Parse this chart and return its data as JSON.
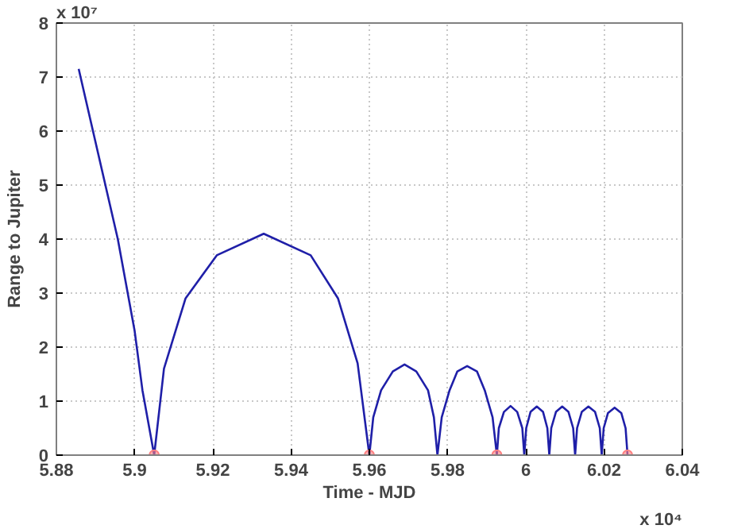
{
  "chart_data": {
    "type": "line",
    "xlabel": "Time - MJD",
    "ylabel": "Range to Jupiter",
    "annotations": [
      "x 10⁷",
      "x 10⁴"
    ],
    "xlim": [
      5.88,
      6.04
    ],
    "xticks": [
      5.88,
      5.9,
      5.92,
      5.94,
      5.96,
      5.98,
      6,
      6.02,
      6.04
    ],
    "ylim": [
      0,
      8
    ],
    "yticks": [
      0,
      1,
      2,
      3,
      4,
      5,
      6,
      7,
      8
    ],
    "grid": true,
    "series": [
      {
        "color": "#1f1fa8",
        "x": [
          5.8857,
          5.8957,
          5.9,
          5.902,
          5.905,
          5.9075,
          5.913,
          5.921,
          5.933,
          5.945,
          5.952,
          5.957,
          5.96,
          5.961,
          5.963,
          5.966,
          5.969,
          5.972,
          5.975,
          5.9765,
          5.9774,
          5.9785,
          5.9805,
          5.9825,
          5.985,
          5.9875,
          5.9895,
          5.9915,
          5.9926,
          5.9931,
          5.9944,
          5.9961,
          5.9978,
          5.9991,
          5.9996,
          6.0001,
          6.0012,
          6.0028,
          6.0044,
          6.0055,
          6.006,
          6.0065,
          6.0077,
          6.0093,
          6.0109,
          6.0121,
          6.0126,
          6.0131,
          6.0143,
          6.016,
          6.0177,
          6.0189,
          6.0194,
          6.0199,
          6.021,
          6.0227,
          6.0244,
          6.0255,
          6.026
        ],
        "values": [
          7.15,
          4.0,
          2.3,
          1.2,
          0,
          1.6,
          2.9,
          3.7,
          4.1,
          3.7,
          2.9,
          1.7,
          0,
          0.7,
          1.2,
          1.55,
          1.68,
          1.55,
          1.2,
          0.7,
          0,
          0.7,
          1.2,
          1.55,
          1.65,
          1.55,
          1.2,
          0.7,
          0,
          0.5,
          0.8,
          0.91,
          0.8,
          0.5,
          0,
          0.5,
          0.8,
          0.9,
          0.8,
          0.5,
          0,
          0.5,
          0.8,
          0.9,
          0.8,
          0.5,
          0,
          0.5,
          0.8,
          0.9,
          0.8,
          0.5,
          0,
          0.5,
          0.78,
          0.88,
          0.78,
          0.5,
          0
        ]
      },
      {
        "type": "scatter",
        "marker": "circle",
        "color": "#ff8080",
        "x": [
          5.905,
          5.96,
          5.9926,
          6.026
        ],
        "values": [
          0,
          0,
          0,
          0
        ]
      }
    ]
  }
}
